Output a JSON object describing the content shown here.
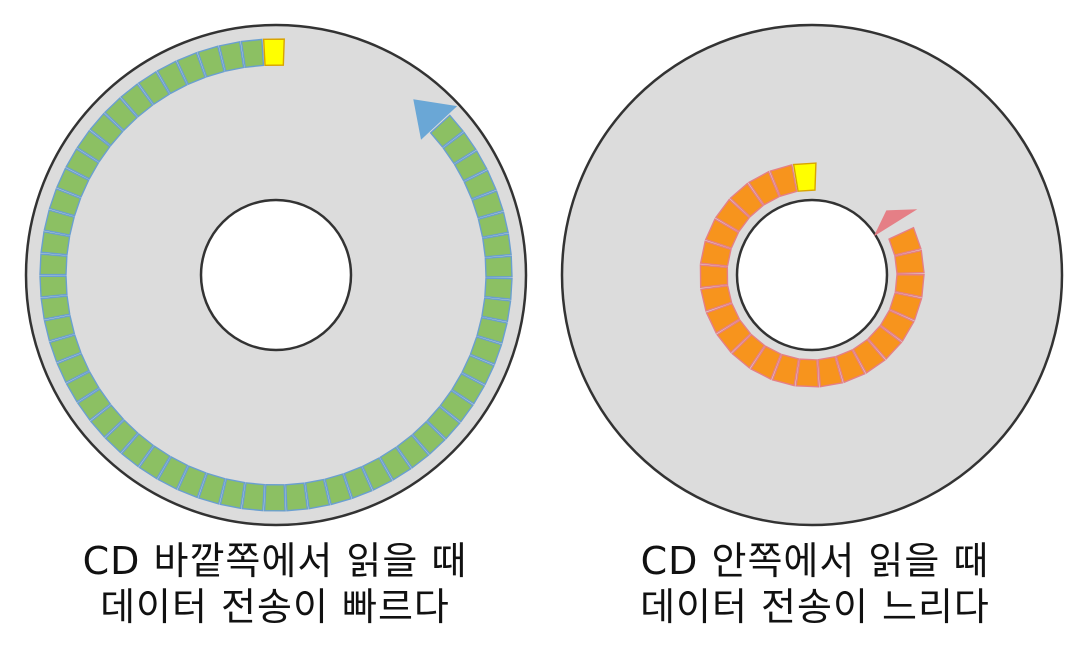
{
  "discs": [
    {
      "id": "outer-read",
      "caption_line1": "CD 바깥쪽에서 읽을 때",
      "caption_line2": "데이터 전송이 빠르다",
      "track": "outer",
      "block_color": "#8cc063",
      "block_edge_color": "#6a9fd0",
      "marker_color": "#ffff00",
      "arrow_color": "#6aa7d6"
    },
    {
      "id": "inner-read",
      "caption_line1": "CD 안쪽에서 읽을 때",
      "caption_line2": "데이터 전송이 느리다",
      "track": "inner",
      "block_color": "#f7941d",
      "block_edge_color": "#e57f86",
      "marker_color": "#ffff00",
      "arrow_color": "#e57f86"
    }
  ],
  "colors": {
    "disc_fill": "#dcdcdc",
    "disc_edge": "#333333",
    "hole_fill": "#ffffff"
  }
}
